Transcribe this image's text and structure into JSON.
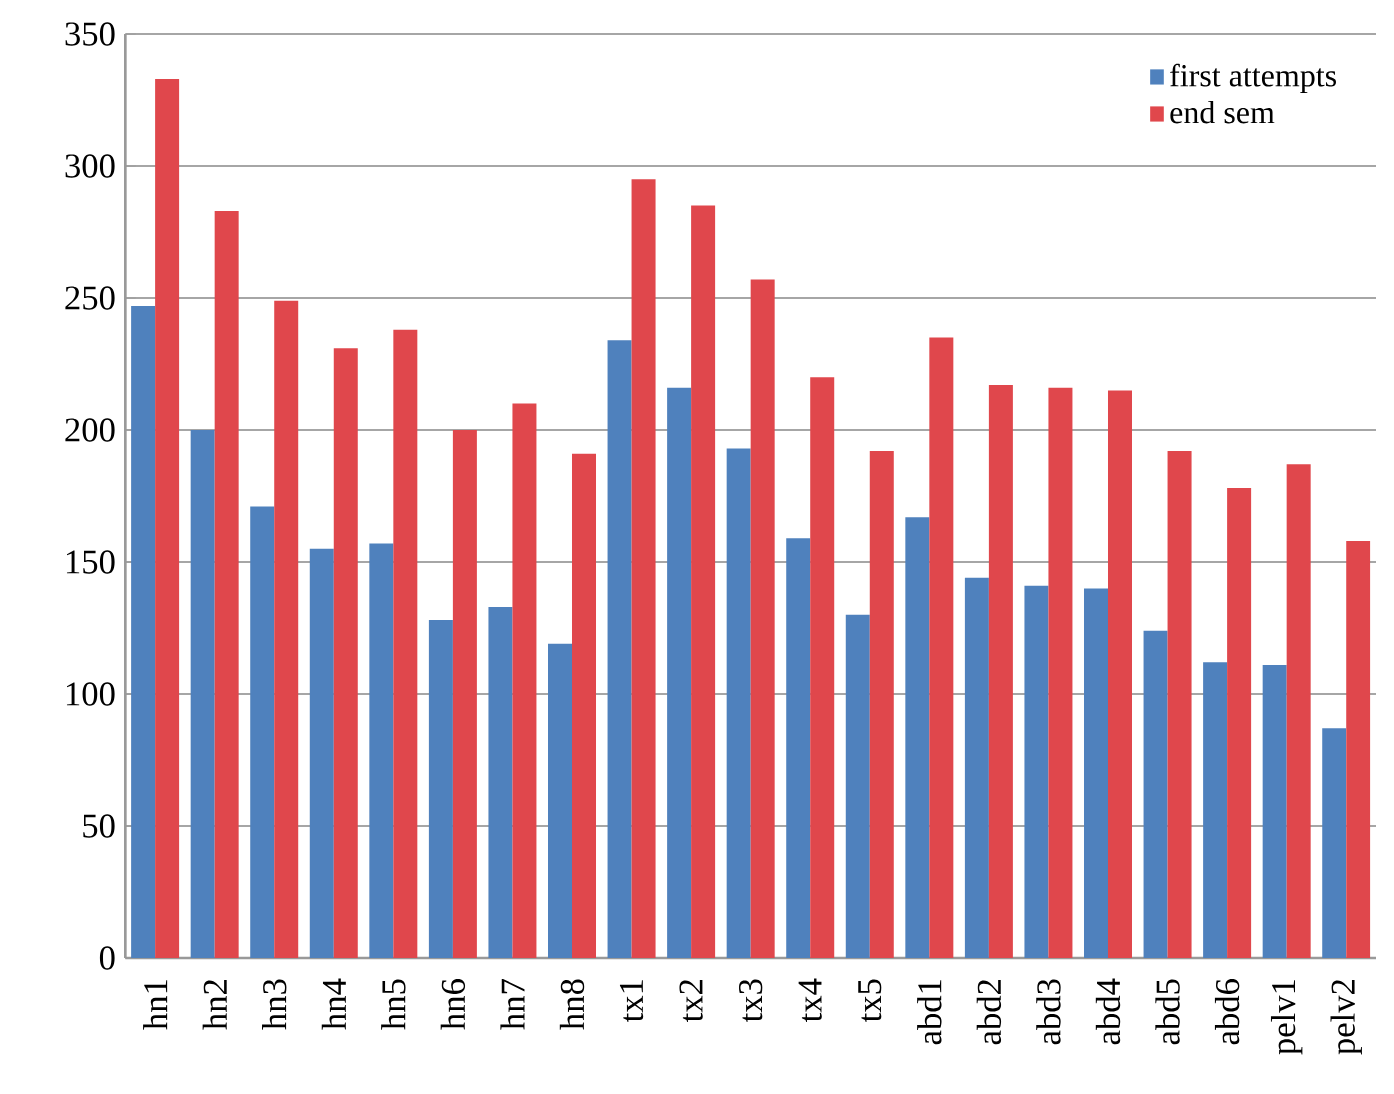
{
  "chart_data": {
    "type": "bar",
    "categories": [
      "hn1",
      "hn2",
      "hn3",
      "hn4",
      "hn5",
      "hn6",
      "hn7",
      "hn8",
      "tx1",
      "tx2",
      "tx3",
      "tx4",
      "tx5",
      "abd1",
      "abd2",
      "abd3",
      "abd4",
      "abd5",
      "abd6",
      "pelv1",
      "pelv2"
    ],
    "series": [
      {
        "name": "first attempts",
        "color": "#4f81bd",
        "values": [
          247,
          200,
          171,
          155,
          157,
          128,
          133,
          119,
          234,
          216,
          193,
          159,
          130,
          167,
          144,
          141,
          140,
          124,
          112,
          111,
          87
        ]
      },
      {
        "name": "end sem",
        "color": "#e0474c",
        "values": [
          333,
          283,
          249,
          231,
          238,
          200,
          210,
          191,
          295,
          285,
          257,
          220,
          192,
          235,
          217,
          216,
          215,
          192,
          178,
          187,
          158
        ]
      }
    ],
    "ylim": [
      0,
      350
    ],
    "yticks": [
      0,
      50,
      100,
      150,
      200,
      250,
      300,
      350
    ],
    "grid": "y",
    "legend": "top right"
  }
}
